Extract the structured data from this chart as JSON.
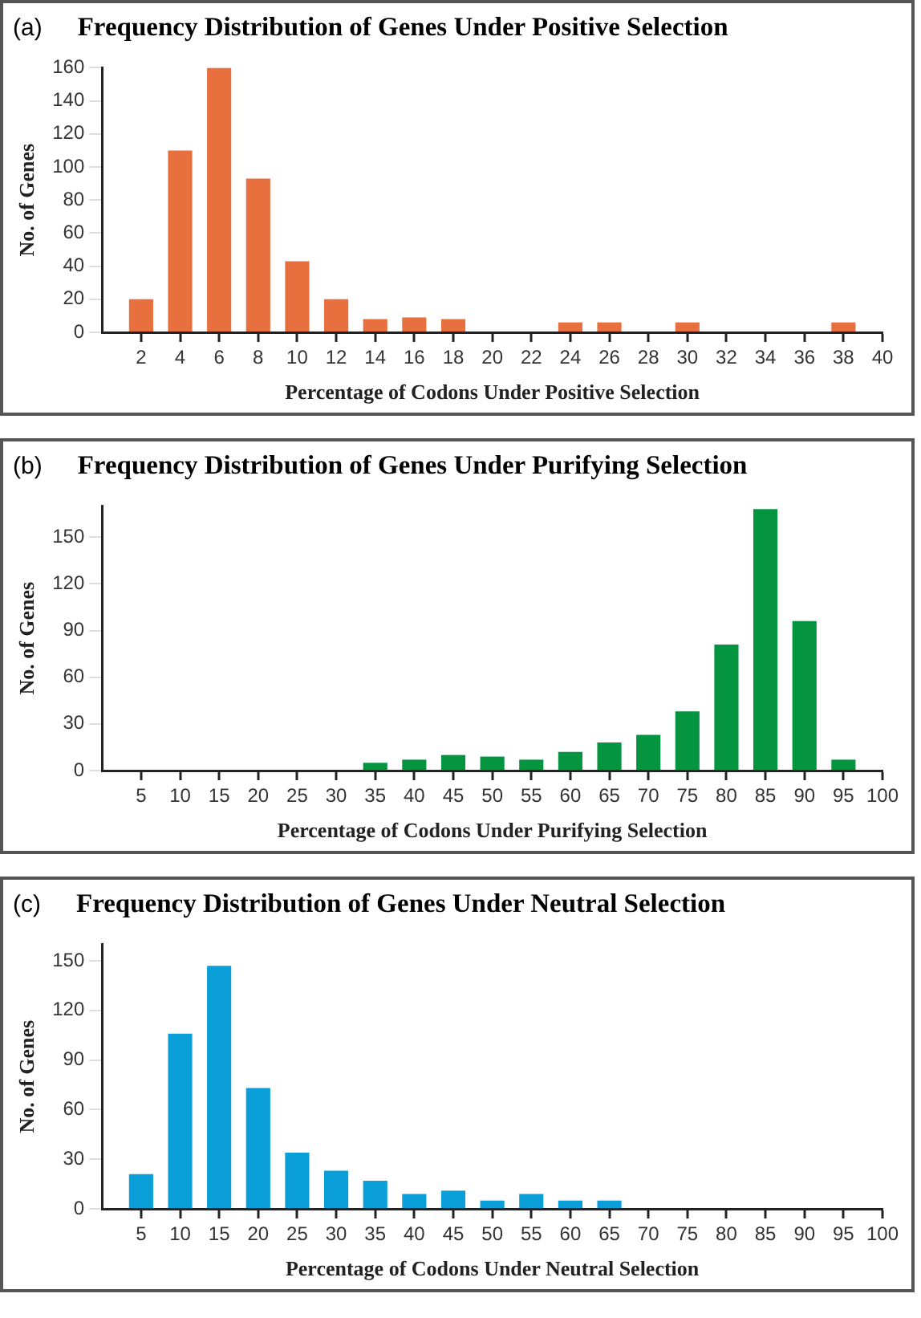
{
  "chart_data": [
    {
      "type": "bar",
      "title": "Frequency Distribution of Genes Under Positive Selection",
      "annotations": [
        "(a)"
      ],
      "xlabel": "Percentage of Codons Under Positive Selection",
      "ylabel": "No. of Genes",
      "x": [
        2,
        4,
        6,
        8,
        10,
        12,
        14,
        16,
        18,
        24,
        26,
        30,
        38
      ],
      "series": [
        {
          "color": "#e8703e",
          "values": [
            20,
            110,
            160,
            93,
            43,
            20,
            8,
            9,
            8,
            6,
            6,
            6,
            6
          ]
        }
      ],
      "xlim": [
        0,
        40
      ],
      "xticks": [
        2,
        4,
        6,
        8,
        10,
        12,
        14,
        16,
        18,
        20,
        22,
        24,
        26,
        28,
        30,
        32,
        34,
        36,
        38,
        40
      ],
      "ylim": [
        0,
        160
      ],
      "yticks": [
        0,
        20,
        40,
        60,
        80,
        100,
        120,
        140,
        160
      ],
      "grid": false,
      "legend": false
    },
    {
      "type": "bar",
      "title": "Frequency Distribution of Genes Under Purifying Selection",
      "annotations": [
        "(b)"
      ],
      "xlabel": "Percentage of Codons Under Purifying Selection",
      "ylabel": "No. of Genes",
      "x": [
        35,
        40,
        45,
        50,
        55,
        60,
        65,
        70,
        75,
        80,
        85,
        90,
        95
      ],
      "series": [
        {
          "color": "#05943f",
          "values": [
            5,
            7,
            10,
            9,
            7,
            12,
            18,
            23,
            38,
            81,
            168,
            96,
            7
          ]
        }
      ],
      "xlim": [
        0,
        100
      ],
      "xticks": [
        5,
        10,
        15,
        20,
        25,
        30,
        35,
        40,
        45,
        50,
        55,
        60,
        65,
        70,
        75,
        80,
        85,
        90,
        95,
        100
      ],
      "ylim": [
        0,
        170
      ],
      "yticks": [
        0,
        30,
        60,
        90,
        120,
        150
      ],
      "grid": false,
      "legend": false
    },
    {
      "type": "bar",
      "title": "Frequency Distribution of Genes Under Neutral Selection",
      "annotations": [
        "(c)"
      ],
      "xlabel": "Percentage of Codons Under Neutral Selection",
      "ylabel": "No. of Genes",
      "x": [
        5,
        10,
        15,
        20,
        25,
        30,
        35,
        40,
        45,
        50,
        55,
        60,
        65
      ],
      "series": [
        {
          "color": "#0a9fd8",
          "values": [
            21,
            106,
            147,
            73,
            34,
            23,
            17,
            9,
            11,
            5,
            9,
            5,
            5
          ]
        }
      ],
      "xlim": [
        0,
        100
      ],
      "xticks": [
        5,
        10,
        15,
        20,
        25,
        30,
        35,
        40,
        45,
        50,
        55,
        60,
        65,
        70,
        75,
        80,
        85,
        90,
        95,
        100
      ],
      "ylim": [
        0,
        160
      ],
      "yticks": [
        0,
        30,
        60,
        90,
        120,
        150
      ],
      "grid": false,
      "legend": false
    }
  ]
}
